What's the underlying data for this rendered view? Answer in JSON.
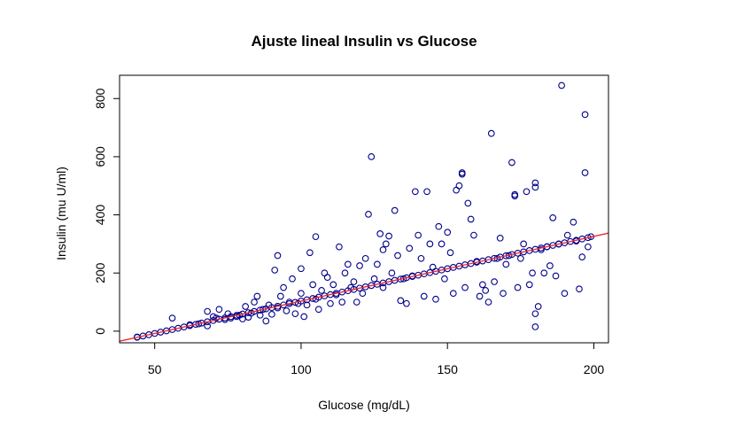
{
  "chart_data": {
    "type": "scatter",
    "title": "Ajuste lineal Insulin vs Glucose",
    "xlabel": "Glucose (mg/dL)",
    "ylabel": "Insulin (mu U/ml)",
    "xlim": [
      38,
      205
    ],
    "ylim": [
      -40,
      880
    ],
    "xticks": [
      50,
      100,
      150,
      200
    ],
    "yticks": [
      0,
      200,
      400,
      600,
      800
    ],
    "grid": false,
    "colors": {
      "points": "#00008b",
      "fit_line": "#e8262e",
      "axis": "#000000"
    },
    "fit_line": {
      "intercept": -119.13,
      "slope": 2.2261
    },
    "observed_points": [
      [
        44,
        -20
      ],
      [
        56,
        45
      ],
      [
        62,
        22
      ],
      [
        65,
        25
      ],
      [
        68,
        18
      ],
      [
        68,
        68
      ],
      [
        70,
        50
      ],
      [
        71,
        45
      ],
      [
        72,
        75
      ],
      [
        74,
        40
      ],
      [
        75,
        60
      ],
      [
        76,
        45
      ],
      [
        78,
        50
      ],
      [
        79,
        55
      ],
      [
        80,
        42
      ],
      [
        81,
        85
      ],
      [
        82,
        48
      ],
      [
        83,
        62
      ],
      [
        84,
        100
      ],
      [
        85,
        120
      ],
      [
        86,
        55
      ],
      [
        87,
        75
      ],
      [
        88,
        35
      ],
      [
        89,
        90
      ],
      [
        90,
        58
      ],
      [
        91,
        210
      ],
      [
        92,
        260
      ],
      [
        92,
        80
      ],
      [
        93,
        120
      ],
      [
        94,
        150
      ],
      [
        95,
        70
      ],
      [
        96,
        100
      ],
      [
        97,
        180
      ],
      [
        98,
        60
      ],
      [
        99,
        95
      ],
      [
        100,
        215
      ],
      [
        100,
        130
      ],
      [
        101,
        50
      ],
      [
        102,
        90
      ],
      [
        103,
        270
      ],
      [
        104,
        160
      ],
      [
        105,
        110
      ],
      [
        105,
        325
      ],
      [
        106,
        75
      ],
      [
        107,
        140
      ],
      [
        108,
        200
      ],
      [
        109,
        185
      ],
      [
        110,
        95
      ],
      [
        111,
        160
      ],
      [
        112,
        125
      ],
      [
        113,
        290
      ],
      [
        114,
        100
      ],
      [
        115,
        200
      ],
      [
        116,
        230
      ],
      [
        117,
        150
      ],
      [
        118,
        170
      ],
      [
        119,
        100
      ],
      [
        120,
        225
      ],
      [
        121,
        130
      ],
      [
        122,
        250
      ],
      [
        123,
        402
      ],
      [
        124,
        600
      ],
      [
        125,
        180
      ],
      [
        126,
        230
      ],
      [
        127,
        335
      ],
      [
        128,
        150
      ],
      [
        128,
        280
      ],
      [
        129,
        300
      ],
      [
        130,
        327
      ],
      [
        131,
        200
      ],
      [
        132,
        415
      ],
      [
        133,
        260
      ],
      [
        134,
        105
      ],
      [
        135,
        180
      ],
      [
        136,
        95
      ],
      [
        137,
        285
      ],
      [
        138,
        190
      ],
      [
        139,
        480
      ],
      [
        140,
        330
      ],
      [
        141,
        250
      ],
      [
        142,
        120
      ],
      [
        143,
        480
      ],
      [
        144,
        300
      ],
      [
        145,
        220
      ],
      [
        146,
        110
      ],
      [
        147,
        360
      ],
      [
        148,
        300
      ],
      [
        149,
        180
      ],
      [
        150,
        340
      ],
      [
        151,
        270
      ],
      [
        152,
        130
      ],
      [
        153,
        485
      ],
      [
        154,
        500
      ],
      [
        155,
        545
      ],
      [
        155,
        540
      ],
      [
        156,
        150
      ],
      [
        157,
        440
      ],
      [
        158,
        385
      ],
      [
        159,
        330
      ],
      [
        160,
        240
      ],
      [
        161,
        120
      ],
      [
        162,
        160
      ],
      [
        163,
        140
      ],
      [
        164,
        100
      ],
      [
        165,
        680
      ],
      [
        166,
        170
      ],
      [
        167,
        250
      ],
      [
        168,
        320
      ],
      [
        169,
        130
      ],
      [
        170,
        230
      ],
      [
        171,
        260
      ],
      [
        172,
        580
      ],
      [
        173,
        470
      ],
      [
        173,
        465
      ],
      [
        174,
        150
      ],
      [
        175,
        250
      ],
      [
        176,
        300
      ],
      [
        177,
        480
      ],
      [
        178,
        160
      ],
      [
        179,
        200
      ],
      [
        180,
        510
      ],
      [
        180,
        495
      ],
      [
        181,
        85
      ],
      [
        180,
        60
      ],
      [
        180,
        15
      ],
      [
        182,
        280
      ],
      [
        183,
        200
      ],
      [
        184,
        290
      ],
      [
        185,
        225
      ],
      [
        186,
        390
      ],
      [
        187,
        190
      ],
      [
        188,
        300
      ],
      [
        189,
        845
      ],
      [
        190,
        130
      ],
      [
        191,
        330
      ],
      [
        193,
        375
      ],
      [
        194,
        310
      ],
      [
        195,
        145
      ],
      [
        196,
        255
      ],
      [
        197,
        745
      ],
      [
        197,
        545
      ],
      [
        198,
        290
      ],
      [
        199,
        325
      ]
    ]
  }
}
